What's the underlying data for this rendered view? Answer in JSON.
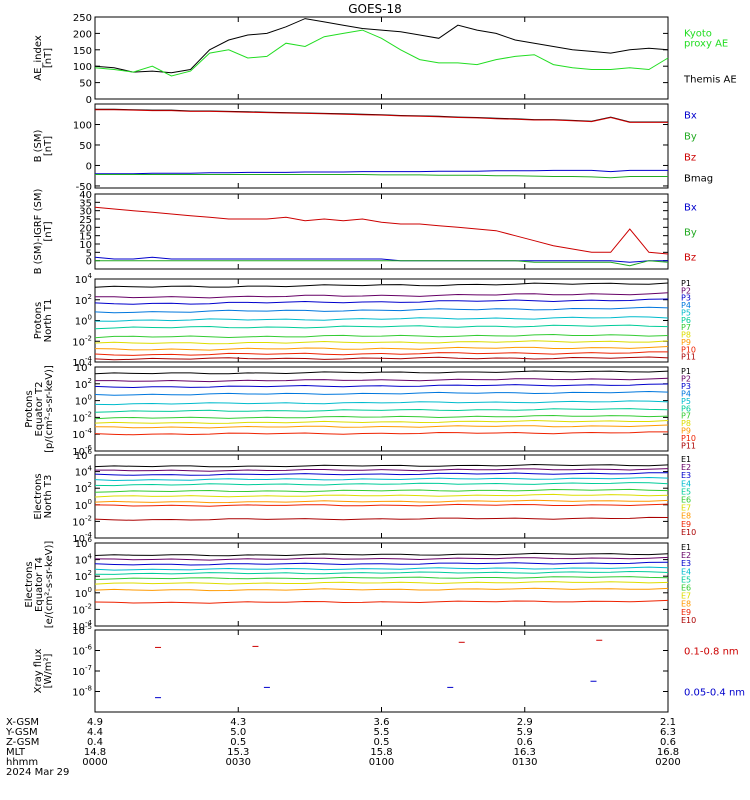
{
  "title": "GOES-18",
  "chart_data": [
    {
      "type": "line",
      "ylabel": "AE_index\n[nT]",
      "yscale": "linear",
      "ylim": [
        0,
        250
      ],
      "yticks": [
        "0",
        "50",
        "100",
        "150",
        "200",
        "250"
      ],
      "legend": [
        {
          "name": "Kyoto\nproxy AE",
          "color": "#22dd22"
        },
        {
          "name": "Themis AE",
          "color": "#000000"
        }
      ],
      "series": [
        {
          "name": "Themis AE",
          "color": "#000000",
          "values": [
            100,
            95,
            82,
            85,
            80,
            90,
            150,
            180,
            195,
            200,
            220,
            245,
            235,
            225,
            215,
            210,
            205,
            195,
            185,
            225,
            210,
            200,
            180,
            170,
            160,
            150,
            145,
            140,
            150,
            155,
            150
          ]
        },
        {
          "name": "Kyoto proxy AE",
          "color": "#22dd22",
          "values": [
            95,
            90,
            82,
            100,
            70,
            85,
            140,
            150,
            125,
            130,
            170,
            160,
            190,
            200,
            210,
            185,
            150,
            120,
            110,
            110,
            105,
            120,
            130,
            135,
            105,
            95,
            90,
            90,
            95,
            90,
            125
          ]
        }
      ]
    },
    {
      "type": "line",
      "ylabel": "B (SM)\n[nT]",
      "yscale": "linear",
      "ylim": [
        -55,
        150
      ],
      "yticks": [
        "-50",
        "0",
        "50",
        "100"
      ],
      "legend": [
        {
          "name": "Bx",
          "color": "#0000cc"
        },
        {
          "name": "By",
          "color": "#22aa22"
        },
        {
          "name": "Bz",
          "color": "#cc0000"
        },
        {
          "name": "Bmag",
          "color": "#000000"
        }
      ],
      "series": [
        {
          "name": "Bmag",
          "color": "#000000",
          "values": [
            137,
            137,
            136,
            135,
            135,
            133,
            133,
            132,
            131,
            130,
            129,
            128,
            127,
            126,
            125,
            124,
            122,
            121,
            120,
            118,
            117,
            115,
            114,
            112,
            112,
            110,
            108,
            118,
            106,
            106,
            106
          ]
        },
        {
          "name": "Bz",
          "color": "#cc0000",
          "values": [
            136,
            136,
            135,
            134,
            134,
            132,
            132,
            131,
            130,
            129,
            128,
            127,
            126,
            125,
            124,
            123,
            121,
            120,
            119,
            117,
            116,
            114,
            113,
            111,
            111,
            109,
            107,
            117,
            105,
            105,
            105
          ]
        },
        {
          "name": "Bx",
          "color": "#0000cc",
          "values": [
            -20,
            -20,
            -20,
            -19,
            -19,
            -19,
            -18,
            -18,
            -17,
            -17,
            -17,
            -16,
            -16,
            -16,
            -15,
            -15,
            -15,
            -15,
            -14,
            -14,
            -14,
            -13,
            -13,
            -13,
            -12,
            -12,
            -12,
            -15,
            -12,
            -12,
            -12
          ]
        },
        {
          "name": "By",
          "color": "#22aa22",
          "values": [
            -22,
            -22,
            -22,
            -22,
            -22,
            -22,
            -22,
            -22,
            -22,
            -22,
            -22,
            -22,
            -22,
            -22,
            -22,
            -23,
            -23,
            -23,
            -24,
            -24,
            -24,
            -25,
            -25,
            -26,
            -27,
            -27,
            -28,
            -30,
            -27,
            -27,
            -27
          ]
        }
      ]
    },
    {
      "type": "line",
      "ylabel": "B (SM)-IGRF (SM)\n[nT]",
      "yscale": "linear",
      "ylim": [
        -5,
        40
      ],
      "yticks": [
        "0",
        "5",
        "10",
        "15",
        "20",
        "25",
        "30",
        "35",
        "40"
      ],
      "legend": [
        {
          "name": "Bx",
          "color": "#0000cc"
        },
        {
          "name": "By",
          "color": "#22aa22"
        },
        {
          "name": "Bz",
          "color": "#cc0000"
        }
      ],
      "series": [
        {
          "name": "Bz",
          "color": "#cc0000",
          "values": [
            32,
            31,
            30,
            29,
            28,
            27,
            26,
            25,
            25,
            25,
            26,
            24,
            25,
            24,
            25,
            23,
            22,
            22,
            21,
            20,
            19,
            18,
            15,
            12,
            9,
            7,
            5,
            5,
            19,
            5,
            4
          ]
        },
        {
          "name": "Bx",
          "color": "#0000cc",
          "values": [
            2,
            1,
            1,
            2,
            1,
            1,
            1,
            1,
            1,
            1,
            1,
            1,
            1,
            1,
            1,
            1,
            0,
            0,
            0,
            0,
            0,
            0,
            0,
            0,
            0,
            0,
            0,
            0,
            -1,
            0,
            0
          ]
        },
        {
          "name": "By",
          "color": "#22aa22",
          "values": [
            0,
            0,
            0,
            0,
            0,
            0,
            0,
            0,
            0,
            0,
            0,
            0,
            0,
            0,
            0,
            0,
            0,
            0,
            0,
            0,
            0,
            0,
            0,
            -1,
            -1,
            -1,
            -1,
            -1,
            -3,
            0,
            -1
          ]
        }
      ]
    },
    {
      "type": "line",
      "ylabel": "Protons\nNorth T1",
      "yscale": "log",
      "ylim_exp": [
        -4,
        4
      ],
      "yticks": [
        "10^-4",
        "10^-2",
        "10^0",
        "10^2",
        "10^4"
      ],
      "legend": [
        {
          "name": "P1",
          "color": "#000000"
        },
        {
          "name": "P2",
          "color": "#660066"
        },
        {
          "name": "P3",
          "color": "#0000cc"
        },
        {
          "name": "P4",
          "color": "#0077dd"
        },
        {
          "name": "P5",
          "color": "#00bbcc"
        },
        {
          "name": "P6",
          "color": "#00cc99"
        },
        {
          "name": "P7",
          "color": "#33cc33"
        },
        {
          "name": "P8",
          "color": "#dddd00"
        },
        {
          "name": "P9",
          "color": "#ff9900"
        },
        {
          "name": "P10",
          "color": "#ee2200"
        },
        {
          "name": "P11",
          "color": "#aa0000"
        }
      ],
      "series_exp": [
        {
          "name": "P1",
          "color": "#000000",
          "start": 3.2,
          "end": 3.6
        },
        {
          "name": "P2",
          "color": "#660066",
          "start": 2.2,
          "end": 2.6
        },
        {
          "name": "P3",
          "color": "#0000cc",
          "start": 1.6,
          "end": 2.0
        },
        {
          "name": "P4",
          "color": "#0077dd",
          "start": 0.8,
          "end": 1.2
        },
        {
          "name": "P5",
          "color": "#00bbcc",
          "start": 0.0,
          "end": 0.3
        },
        {
          "name": "P6",
          "color": "#00cc99",
          "start": -0.7,
          "end": -0.5
        },
        {
          "name": "P7",
          "color": "#33cc33",
          "start": -1.6,
          "end": -1.4
        },
        {
          "name": "P8",
          "color": "#dddd00",
          "start": -2.2,
          "end": -2.0
        },
        {
          "name": "P9",
          "color": "#ff9900",
          "start": -2.8,
          "end": -2.6
        },
        {
          "name": "P10",
          "color": "#ee2200",
          "start": -3.3,
          "end": -3.1
        },
        {
          "name": "P11",
          "color": "#aa0000",
          "start": -3.7,
          "end": -3.6
        }
      ]
    },
    {
      "type": "line",
      "ylabel": "Protons\nEquator T2\n[p/(cm²-s-sr-keV)]",
      "yscale": "log",
      "ylim_exp": [
        -6,
        4
      ],
      "yticks": [
        "10^-6",
        "10^-4",
        "10^-2",
        "10^0",
        "10^2",
        "10^4"
      ],
      "legend": [
        {
          "name": "P1",
          "color": "#000000"
        },
        {
          "name": "P2",
          "color": "#660066"
        },
        {
          "name": "P3",
          "color": "#0000cc"
        },
        {
          "name": "P4",
          "color": "#0077dd"
        },
        {
          "name": "P5",
          "color": "#00bbcc"
        },
        {
          "name": "P6",
          "color": "#00cc99"
        },
        {
          "name": "P7",
          "color": "#33cc33"
        },
        {
          "name": "P8",
          "color": "#dddd00"
        },
        {
          "name": "P9",
          "color": "#ff9900"
        },
        {
          "name": "P10",
          "color": "#ee2200"
        },
        {
          "name": "P11",
          "color": "#aa0000"
        }
      ],
      "series_exp": [
        {
          "name": "P1",
          "color": "#000000",
          "start": 3.2,
          "end": 3.5
        },
        {
          "name": "P2",
          "color": "#660066",
          "start": 2.3,
          "end": 2.6
        },
        {
          "name": "P3",
          "color": "#0000cc",
          "start": 1.6,
          "end": 1.9
        },
        {
          "name": "P4",
          "color": "#0077dd",
          "start": 0.7,
          "end": 1.0
        },
        {
          "name": "P5",
          "color": "#00bbcc",
          "start": -0.4,
          "end": -0.1
        },
        {
          "name": "P6",
          "color": "#00cc99",
          "start": -1.3,
          "end": -1.0
        },
        {
          "name": "P7",
          "color": "#33cc33",
          "start": -2.1,
          "end": -1.8
        },
        {
          "name": "P8",
          "color": "#dddd00",
          "start": -2.7,
          "end": -2.4
        },
        {
          "name": "P9",
          "color": "#ff9900",
          "start": -3.2,
          "end": -3.0
        },
        {
          "name": "P10",
          "color": "#ee2200",
          "start": -4.0,
          "end": -3.8
        }
      ]
    },
    {
      "type": "line",
      "ylabel": "Electrons\nNorth T3",
      "yscale": "log",
      "ylim_exp": [
        -4,
        6
      ],
      "yticks": [
        "10^-4",
        "10^-2",
        "10^0",
        "10^2",
        "10^4",
        "10^6"
      ],
      "legend": [
        {
          "name": "E1",
          "color": "#000000"
        },
        {
          "name": "E2",
          "color": "#660066"
        },
        {
          "name": "E3",
          "color": "#0000cc"
        },
        {
          "name": "E4",
          "color": "#00bbcc"
        },
        {
          "name": "E5",
          "color": "#00cc99"
        },
        {
          "name": "E6",
          "color": "#33cc33"
        },
        {
          "name": "E7",
          "color": "#dddd00"
        },
        {
          "name": "E8",
          "color": "#ff9900"
        },
        {
          "name": "E9",
          "color": "#ee2200"
        },
        {
          "name": "E10",
          "color": "#aa0000"
        }
      ],
      "series_exp": [
        {
          "name": "E1",
          "color": "#000000",
          "start": 4.6,
          "end": 4.8
        },
        {
          "name": "E2",
          "color": "#660066",
          "start": 4.1,
          "end": 4.3
        },
        {
          "name": "E3",
          "color": "#0000cc",
          "start": 3.6,
          "end": 3.8
        },
        {
          "name": "E4",
          "color": "#00bbcc",
          "start": 3.0,
          "end": 3.2
        },
        {
          "name": "E5",
          "color": "#00cc99",
          "start": 2.4,
          "end": 2.6
        },
        {
          "name": "E6",
          "color": "#33cc33",
          "start": 1.6,
          "end": 1.8
        },
        {
          "name": "E7",
          "color": "#dddd00",
          "start": 1.0,
          "end": 1.2
        },
        {
          "name": "E8",
          "color": "#ff9900",
          "start": 0.3,
          "end": 0.5
        },
        {
          "name": "E9",
          "color": "#ee2200",
          "start": -0.1,
          "end": 0.0
        },
        {
          "name": "E10",
          "color": "#aa0000",
          "start": -1.8,
          "end": -1.6
        }
      ]
    },
    {
      "type": "line",
      "ylabel": "Electrons\nEquator T4\n[e/(cm²-s-sr-keV)]",
      "yscale": "log",
      "ylim_exp": [
        -4,
        6
      ],
      "yticks": [
        "10^-4",
        "10^-2",
        "10^0",
        "10^2",
        "10^4",
        "10^6"
      ],
      "legend": [
        {
          "name": "E1",
          "color": "#000000"
        },
        {
          "name": "E2",
          "color": "#660066"
        },
        {
          "name": "E3",
          "color": "#0000cc"
        },
        {
          "name": "E4",
          "color": "#00bbcc"
        },
        {
          "name": "E5",
          "color": "#00cc99"
        },
        {
          "name": "E6",
          "color": "#33cc33"
        },
        {
          "name": "E7",
          "color": "#dddd00"
        },
        {
          "name": "E8",
          "color": "#ff9900"
        },
        {
          "name": "E9",
          "color": "#ee2200"
        },
        {
          "name": "E10",
          "color": "#aa0000"
        }
      ],
      "series_exp": [
        {
          "name": "E1",
          "color": "#000000",
          "start": 4.5,
          "end": 4.7
        },
        {
          "name": "E2",
          "color": "#660066",
          "start": 4.0,
          "end": 4.2
        },
        {
          "name": "E3",
          "color": "#0000cc",
          "start": 3.4,
          "end": 3.6
        },
        {
          "name": "E4",
          "color": "#00bbcc",
          "start": 2.8,
          "end": 3.0
        },
        {
          "name": "E5",
          "color": "#00cc99",
          "start": 2.3,
          "end": 2.5
        },
        {
          "name": "E6",
          "color": "#33cc33",
          "start": 1.7,
          "end": 1.9
        },
        {
          "name": "E7",
          "color": "#dddd00",
          "start": 1.1,
          "end": 1.3
        },
        {
          "name": "E8",
          "color": "#ff9900",
          "start": 0.3,
          "end": 0.5
        },
        {
          "name": "E9",
          "color": "#ee2200",
          "start": -1.2,
          "end": -1.0
        }
      ]
    },
    {
      "type": "scatter",
      "ylabel": "Xray flux\n[W/m²]",
      "yscale": "log",
      "ylim_exp": [
        -9,
        -5
      ],
      "yticks": [
        "10^-8",
        "10^-7",
        "10^-6",
        "10^-5"
      ],
      "legend": [
        {
          "name": "0.1-0.8 nm",
          "color": "#cc0000"
        },
        {
          "name": "0.05-0.4 nm",
          "color": "#0000cc"
        }
      ],
      "series": [
        {
          "name": "0.1-0.8 nm",
          "color": "#cc0000",
          "x": [
            0.11,
            0.28,
            0.64,
            0.88
          ],
          "y_exp": [
            -5.85,
            -5.8,
            -5.6,
            -5.5
          ]
        },
        {
          "name": "0.05-0.4 nm",
          "color": "#0000cc",
          "x": [
            0.11,
            0.3,
            0.62,
            0.87
          ],
          "y_exp": [
            -8.3,
            -7.8,
            -7.8,
            -7.5
          ]
        }
      ]
    }
  ],
  "x_axis": {
    "rows": [
      {
        "label": "X-GSM",
        "values": [
          "4.9",
          "4.3",
          "3.6",
          "2.9",
          "2.1"
        ]
      },
      {
        "label": "Y-GSM",
        "values": [
          "4.4",
          "5.0",
          "5.5",
          "5.9",
          "6.3"
        ]
      },
      {
        "label": "Z-GSM",
        "values": [
          "0.4",
          "0.5",
          "0.5",
          "0.6",
          "0.6"
        ]
      },
      {
        "label": "MLT",
        "values": [
          "14.8",
          "15.3",
          "15.8",
          "16.3",
          "16.8"
        ]
      },
      {
        "label": "hhmm",
        "values": [
          "0000",
          "0030",
          "0100",
          "0130",
          "0200"
        ]
      }
    ],
    "date": "2024 Mar 29"
  }
}
